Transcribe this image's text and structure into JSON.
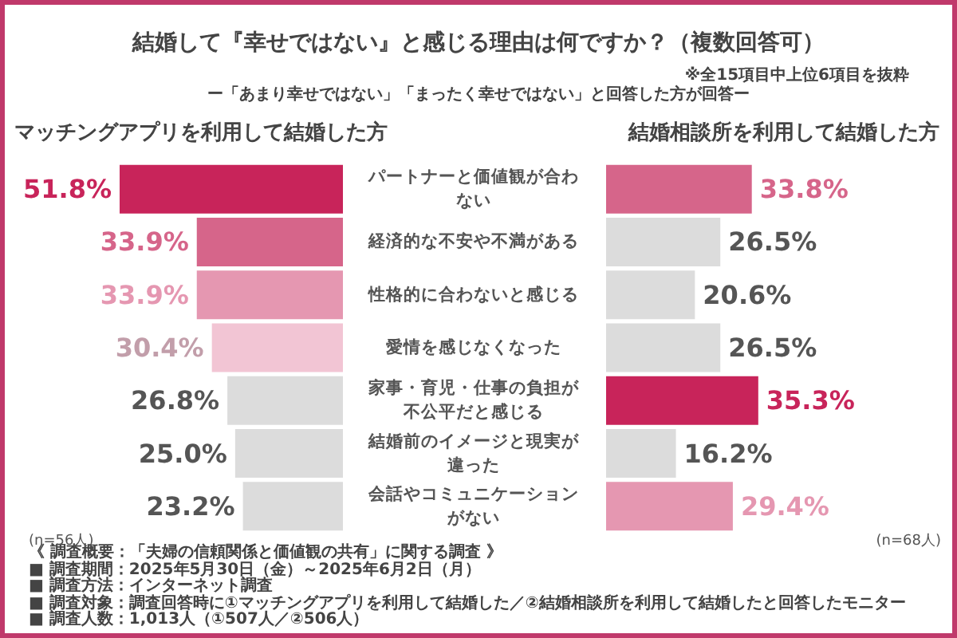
{
  "chart_data": [
    {
      "type": "other",
      "title": "結婚して『幸せではない』と感じる理由は何ですか？（複数回答可）",
      "subtitle": "ー「あまり幸せではない」「まったく幸せではない」と回答した方が回答ー",
      "annotations": [
        "※全15項目中上位6項目を抜粋",
        "《 調査概要：「夫婦の信頼関係と価値観の共有」に関する調査 》",
        "■ 調査期間：2025年5月30日（金）～2025年6月2日（月）",
        "■ 調査方法：インターネット調査",
        "■ 調査対象：調査回答時に①マッチングアプリを利用して結婚した／②結婚相談所を利用して結婚したと回答したモニター",
        "■ 調査人数：1,013人（①507人／②506人）"
      ]
    },
    {
      "type": "bar",
      "orientation": "horizontal",
      "title": "マッチングアプリを利用して結婚した方",
      "annotations": [
        "(n=56人)"
      ],
      "tick_labels": "y",
      "value_labels": [
        "51.8%",
        "33.9%",
        "33.9%",
        "30.4%",
        "26.8%",
        "25.0%",
        "23.2%"
      ],
      "categories": [
        "パートナーと価値観が合わない",
        "経済的な不安や不満がある",
        "性格的に合わないと感じる",
        "愛情を感じなくなった",
        "家事・育児・仕事の負担が不公平だと感じる",
        "結婚前のイメージと現実が違った",
        "会話やコミュニケーションがない"
      ],
      "values": [
        51.8,
        33.9,
        33.9,
        30.4,
        26.8,
        25.0,
        23.2
      ],
      "colors": [
        "#c8245a",
        "#d6658a",
        "#e597b1",
        "#f2c5d4",
        "#dcdcdc",
        "#dcdcdc",
        "#dcdcdc"
      ]
    },
    {
      "type": "bar",
      "orientation": "horizontal",
      "title": "結婚相談所を利用して結婚した方",
      "annotations": [
        "(n=68人)"
      ],
      "tick_labels": false,
      "value_labels": [
        "33.8%",
        "26.5%",
        "20.6%",
        "26.5%",
        "35.3%",
        "16.2%",
        "29.4%"
      ],
      "categories": [
        null,
        null,
        null,
        null,
        null,
        null,
        null
      ],
      "values": [
        33.8,
        26.5,
        20.6,
        26.5,
        35.3,
        16.2,
        29.4
      ],
      "colors": [
        "#d6658a",
        "#dcdcdc",
        "#dcdcdc",
        "#dcdcdc",
        "#c8245a",
        "#dcdcdc",
        "#e597b1"
      ]
    }
  ]
}
